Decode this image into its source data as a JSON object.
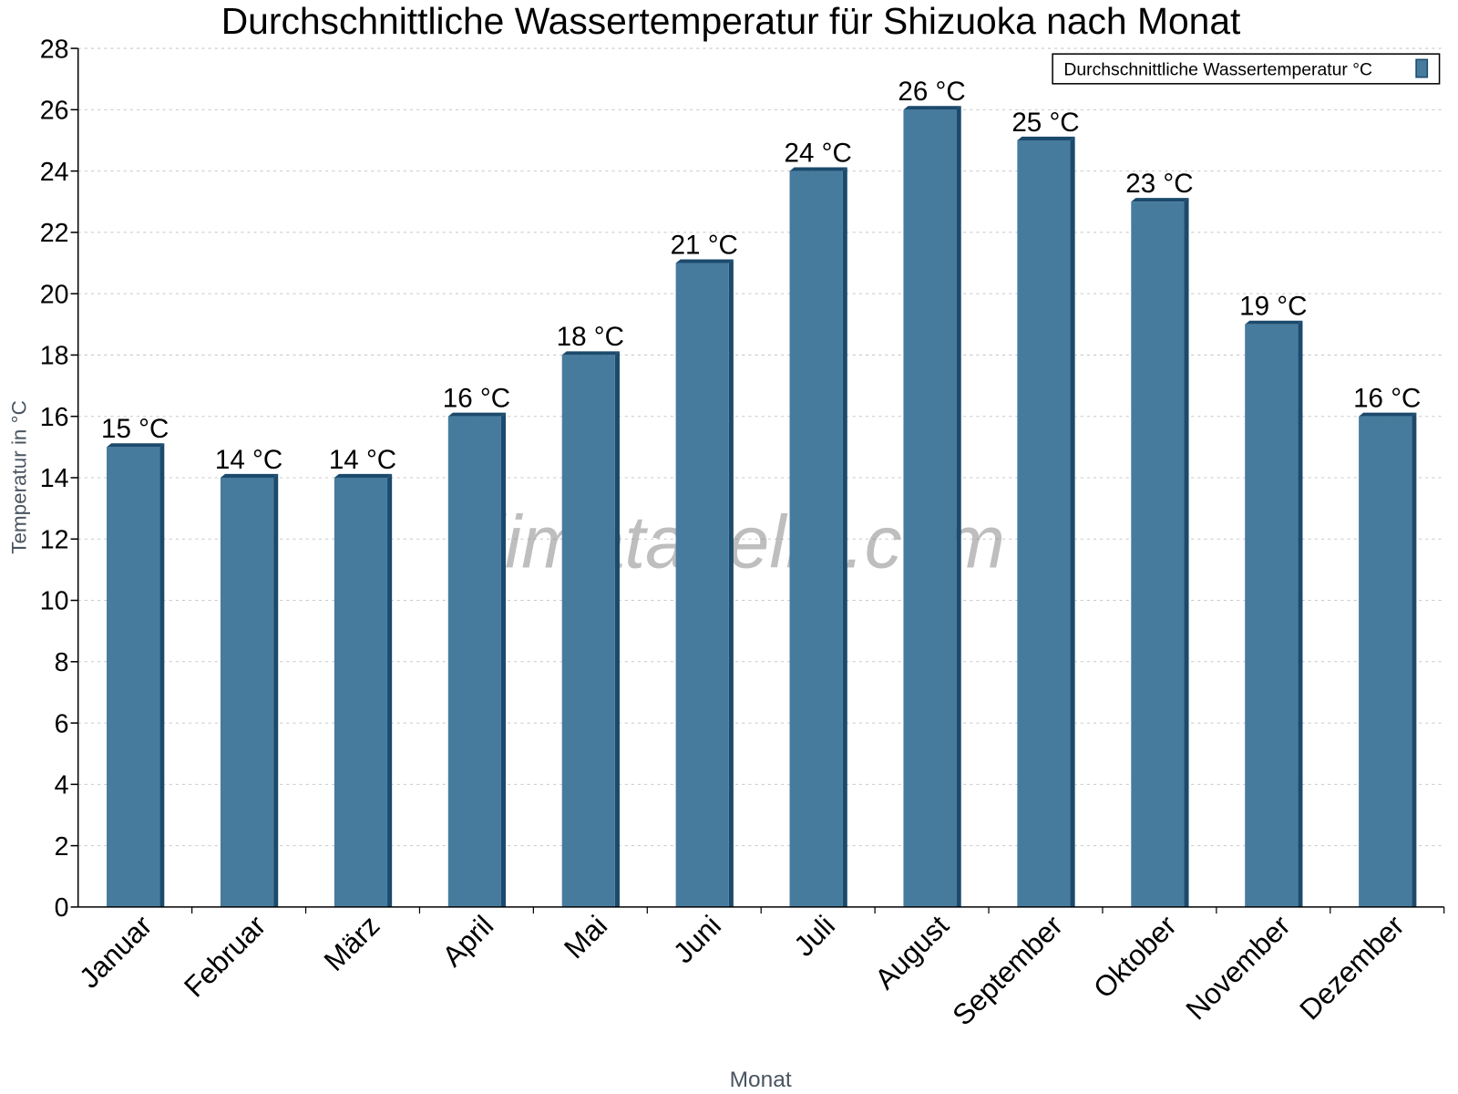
{
  "chart_data": {
    "type": "bar",
    "title": "Durchschnittliche Wassertemperatur für Shizuoka nach Monat",
    "xlabel": "Monat",
    "ylabel": "Temperatur in °C",
    "categories": [
      "Januar",
      "Februar",
      "März",
      "April",
      "Mai",
      "Juni",
      "Juli",
      "August",
      "September",
      "Oktober",
      "November",
      "Dezember"
    ],
    "series": [
      {
        "name": "Durchschnittliche Wassertemperatur °C",
        "values": [
          15,
          14,
          14,
          16,
          18,
          21,
          24,
          26,
          25,
          23,
          19,
          16
        ]
      }
    ],
    "value_suffix": " °C",
    "ylim": [
      0,
      28
    ],
    "yticks": [
      0,
      2,
      4,
      6,
      8,
      10,
      12,
      14,
      16,
      18,
      20,
      22,
      24,
      26,
      28
    ],
    "grid": true,
    "legend": "top-right",
    "watermark": "klimatabelle.com",
    "colors": {
      "bar": "#467b9e",
      "bar_dark": "#1b4a6c",
      "grid": "#c8c8c8"
    }
  }
}
